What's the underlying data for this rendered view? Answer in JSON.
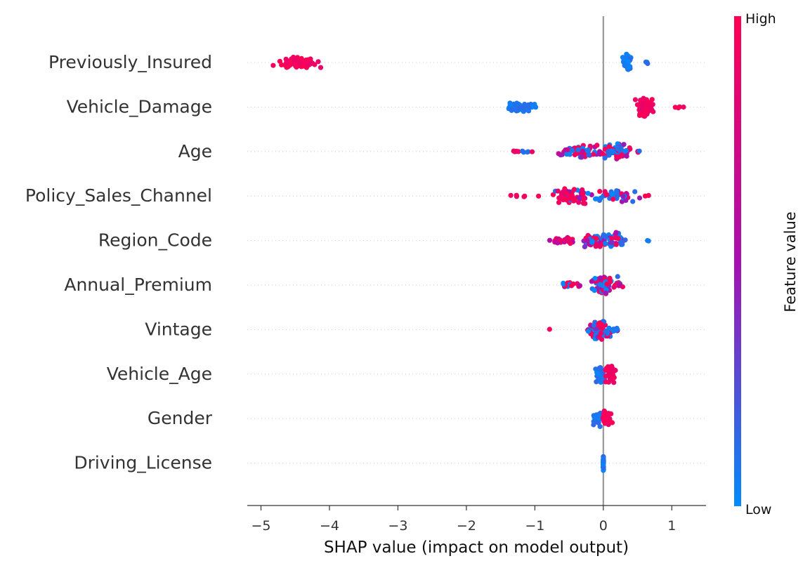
{
  "chart_data": {
    "type": "scatter",
    "subtype": "shap-beeswarm",
    "xlabel": "SHAP value (impact on model output)",
    "xlim": [
      -5.2,
      1.5
    ],
    "xticks": [
      -5,
      -4,
      -3,
      -2,
      -1,
      0,
      1
    ],
    "xtick_labels": [
      "−5",
      "−4",
      "−3",
      "−2",
      "−1",
      "0",
      "1"
    ],
    "zero_line": 0,
    "grid": "dotted row guides",
    "colors": {
      "low": "#008bfb",
      "mid": "#a70fb0",
      "high": "#ff0052",
      "zero_line": "#999999",
      "axis": "#333333"
    },
    "colorbar": {
      "label": "Feature value",
      "high_label": "High",
      "low_label": "Low",
      "placement": "right"
    },
    "features": [
      {
        "name": "Previously_Insured",
        "clusters": [
          {
            "center": -4.45,
            "spread": 0.28,
            "count": 70,
            "low_share": 0.0,
            "width": 0.3
          },
          {
            "center": 0.35,
            "spread": 0.05,
            "count": 40,
            "low_share": 1.0,
            "width": 0.42
          },
          {
            "center": 0.62,
            "spread": 0.07,
            "count": 3,
            "low_share": 1.0,
            "width": 0.05
          }
        ]
      },
      {
        "name": "Vehicle_Damage",
        "clusters": [
          {
            "center": -1.2,
            "spread": 0.2,
            "count": 70,
            "low_share": 1.0,
            "width": 0.22
          },
          {
            "center": 0.62,
            "spread": 0.12,
            "count": 60,
            "low_share": 0.0,
            "width": 0.5
          },
          {
            "center": 1.12,
            "spread": 0.09,
            "count": 4,
            "low_share": 0.0,
            "width": 0.06
          }
        ]
      },
      {
        "name": "Age",
        "clusters": [
          {
            "center": -1.2,
            "spread": 0.18,
            "count": 10,
            "low_share": 0.3,
            "width": 0.05
          },
          {
            "center": -0.35,
            "spread": 0.28,
            "count": 70,
            "low_share": 0.55,
            "width": 0.32
          },
          {
            "center": 0.2,
            "spread": 0.2,
            "count": 70,
            "low_share": 0.4,
            "width": 0.4
          },
          {
            "center": 0.5,
            "spread": 0.06,
            "count": 4,
            "low_share": 0.5,
            "width": 0.05
          }
        ]
      },
      {
        "name": "Policy_Sales_Channel",
        "clusters": [
          {
            "center": -1.2,
            "spread": 0.25,
            "count": 6,
            "low_share": 0.0,
            "width": 0.05
          },
          {
            "center": -0.45,
            "spread": 0.25,
            "count": 60,
            "low_share": 0.2,
            "width": 0.4
          },
          {
            "center": 0.2,
            "spread": 0.25,
            "count": 45,
            "low_share": 0.6,
            "width": 0.3
          },
          {
            "center": 0.65,
            "spread": 0.05,
            "count": 2,
            "low_share": 0.0,
            "width": 0.03
          }
        ]
      },
      {
        "name": "Region_Code",
        "clusters": [
          {
            "center": -0.6,
            "spread": 0.2,
            "count": 25,
            "low_share": 0.1,
            "width": 0.15
          },
          {
            "center": -0.15,
            "spread": 0.2,
            "count": 40,
            "low_share": 0.5,
            "width": 0.3
          },
          {
            "center": 0.15,
            "spread": 0.2,
            "count": 45,
            "low_share": 0.75,
            "width": 0.38
          },
          {
            "center": 0.62,
            "spread": 0.05,
            "count": 2,
            "low_share": 1.0,
            "width": 0.03
          }
        ]
      },
      {
        "name": "Annual_Premium",
        "clusters": [
          {
            "center": -0.45,
            "spread": 0.15,
            "count": 15,
            "low_share": 0.1,
            "width": 0.12
          },
          {
            "center": 0.0,
            "spread": 0.15,
            "count": 80,
            "low_share": 0.45,
            "width": 0.42
          },
          {
            "center": 0.22,
            "spread": 0.06,
            "count": 10,
            "low_share": 0.2,
            "width": 0.12
          }
        ]
      },
      {
        "name": "Vintage",
        "clusters": [
          {
            "center": -0.8,
            "spread": 0.02,
            "count": 1,
            "low_share": 0.0,
            "width": 0.02
          },
          {
            "center": -0.05,
            "spread": 0.15,
            "count": 90,
            "low_share": 0.45,
            "width": 0.5
          },
          {
            "center": 0.18,
            "spread": 0.08,
            "count": 12,
            "low_share": 0.9,
            "width": 0.1
          }
        ]
      },
      {
        "name": "Vehicle_Age",
        "clusters": [
          {
            "center": -0.06,
            "spread": 0.06,
            "count": 40,
            "low_share": 1.0,
            "width": 0.45
          },
          {
            "center": 0.1,
            "spread": 0.06,
            "count": 40,
            "low_share": 0.0,
            "width": 0.45
          }
        ]
      },
      {
        "name": "Gender",
        "clusters": [
          {
            "center": -0.08,
            "spread": 0.07,
            "count": 40,
            "low_share": 1.0,
            "width": 0.38
          },
          {
            "center": 0.06,
            "spread": 0.06,
            "count": 35,
            "low_share": 0.0,
            "width": 0.35
          }
        ]
      },
      {
        "name": "Driving_License",
        "clusters": [
          {
            "center": 0.0,
            "spread": 0.004,
            "count": 30,
            "low_share": 1.0,
            "width": 0.4
          }
        ]
      }
    ]
  }
}
